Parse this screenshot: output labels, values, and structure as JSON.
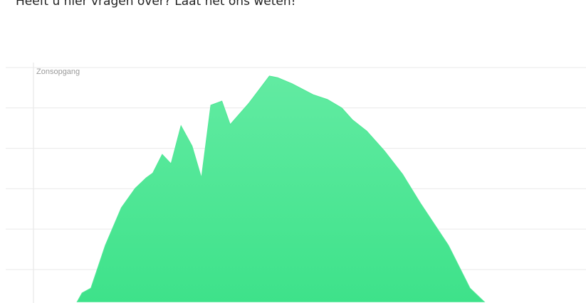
{
  "header": {
    "text": "Heeft u hier vragen over? Laat het ons weten!"
  },
  "chart_data": {
    "type": "area",
    "annotation": "Zonsopgang",
    "x": [
      7.9,
      8.8,
      10.4,
      13.0,
      15.9,
      18.4,
      20.4,
      21.6,
      23.3,
      24.9,
      26.7,
      28.7,
      30.4,
      32.1,
      34.1,
      35.6,
      39.0,
      42.7,
      44.2,
      46.8,
      50.6,
      53.2,
      55.8,
      57.7,
      60.3,
      63.5,
      66.8,
      70.0,
      75.1,
      79.0,
      81.6
    ],
    "series": [
      {
        "color": "#52e797",
        "values": [
          0.2,
          0.42,
          0.54,
          1.6,
          2.53,
          3.01,
          3.27,
          3.39,
          3.85,
          3.62,
          4.56,
          4.06,
          3.27,
          5.07,
          5.17,
          4.59,
          5.12,
          5.79,
          5.75,
          5.6,
          5.33,
          5.21,
          5.0,
          4.71,
          4.43,
          3.94,
          3.36,
          2.65,
          1.6,
          0.54,
          0.2
        ]
      }
    ],
    "xlim": [
      0,
      100
    ],
    "ylim": [
      0.2,
      6
    ],
    "yticks": [
      1,
      2,
      3,
      4,
      5,
      6
    ],
    "grid": true
  }
}
